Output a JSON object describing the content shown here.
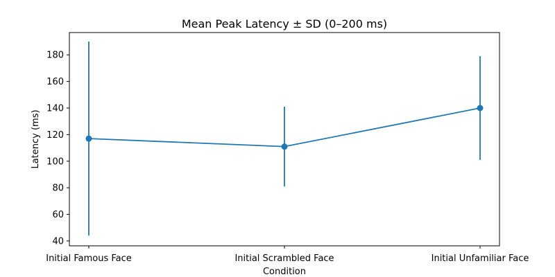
{
  "chart_data": {
    "type": "line",
    "title": "Mean Peak Latency ± SD (0–200 ms)",
    "xlabel": "Condition",
    "ylabel": "Latency (ms)",
    "categories": [
      "Initial Famous Face",
      "Initial Scrambled Face",
      "Initial Unfamiliar Face"
    ],
    "series": [
      {
        "values": [
          117,
          111,
          140
        ],
        "sd": [
          73,
          30,
          39
        ],
        "color": "#1f77b4"
      }
    ],
    "ylim": [
      36.3,
      196.8
    ],
    "yticks": [
      40,
      60,
      80,
      100,
      120,
      140,
      160,
      180
    ],
    "grid": false
  }
}
